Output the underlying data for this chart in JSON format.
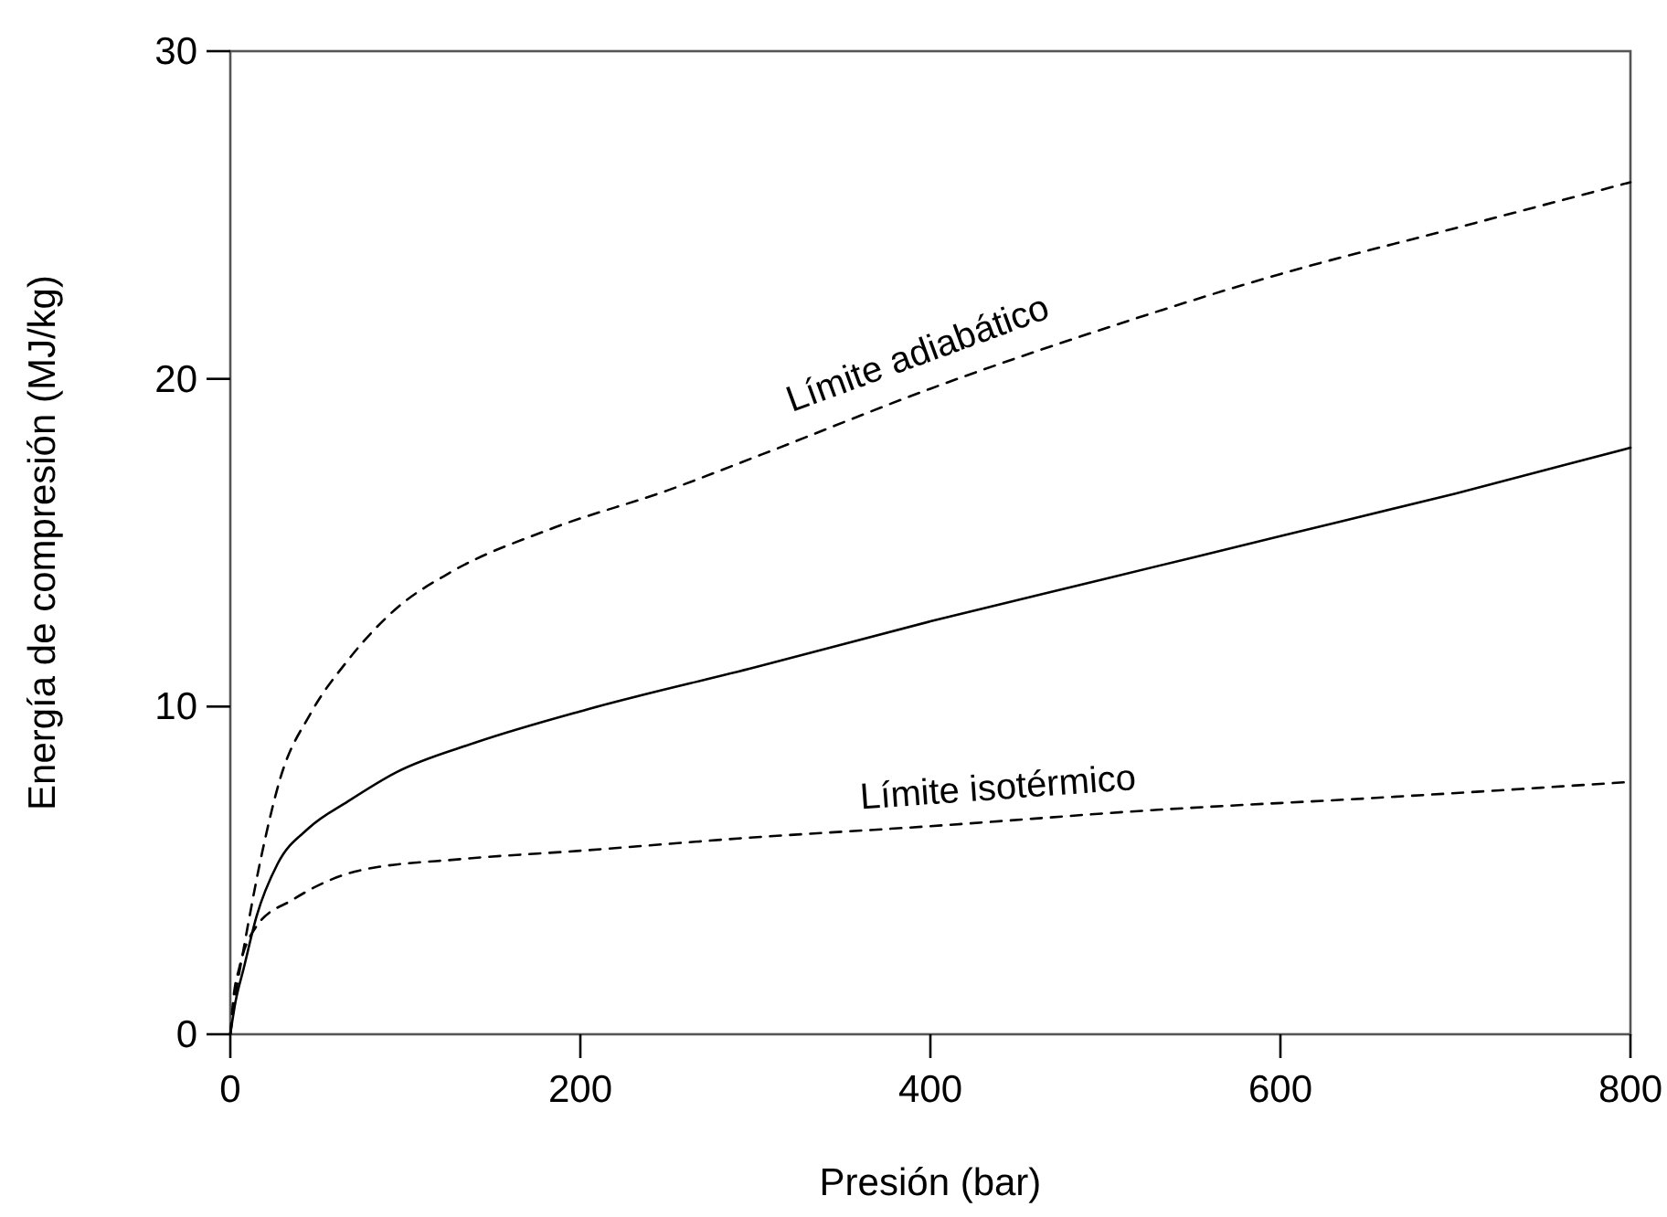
{
  "chart_data": {
    "type": "line",
    "xlabel": "Presión (bar)",
    "ylabel": "Energía de compresión (MJ/kg)",
    "xlim": [
      0,
      800
    ],
    "ylim": [
      0,
      30
    ],
    "xticks": [
      0,
      200,
      400,
      600,
      800
    ],
    "yticks": [
      0,
      10,
      20,
      30
    ],
    "grid": false,
    "series": [
      {
        "name": "Límite adiabático",
        "color": "#000000",
        "line_style": "dashed",
        "x": [
          0,
          3,
          7.6,
          18,
          28.5,
          46,
          67,
          95,
          126,
          182,
          250,
          304,
          400,
          509,
          600,
          700,
          800
        ],
        "values": [
          0,
          1.2,
          2.6,
          5.5,
          7.8,
          9.8,
          11.4,
          13,
          14.1,
          15.4,
          16.6,
          17.7,
          19.7,
          21.7,
          23.2,
          24.6,
          26
        ]
      },
      {
        "color": "#000000",
        "line_style": "solid",
        "x": [
          0,
          3,
          7.6,
          15,
          27,
          45,
          67,
          95,
          140,
          203,
          300,
          400,
          500,
          600,
          700,
          800
        ],
        "values": [
          0,
          1,
          2,
          3.6,
          5.2,
          6.3,
          7.1,
          8,
          8.9,
          9.9,
          11.2,
          12.6,
          13.9,
          15.2,
          16.5,
          17.9
        ]
      },
      {
        "name": "Límite isotérmico",
        "color": "#000000",
        "line_style": "dashed",
        "x": [
          0,
          2,
          5,
          15,
          35.5,
          74,
          133,
          200,
          297,
          400,
          530,
          650,
          800
        ],
        "values": [
          0,
          1.2,
          2,
          3.3,
          4.1,
          5,
          5.35,
          5.6,
          6,
          6.35,
          6.85,
          7.2,
          7.7
        ]
      }
    ]
  }
}
